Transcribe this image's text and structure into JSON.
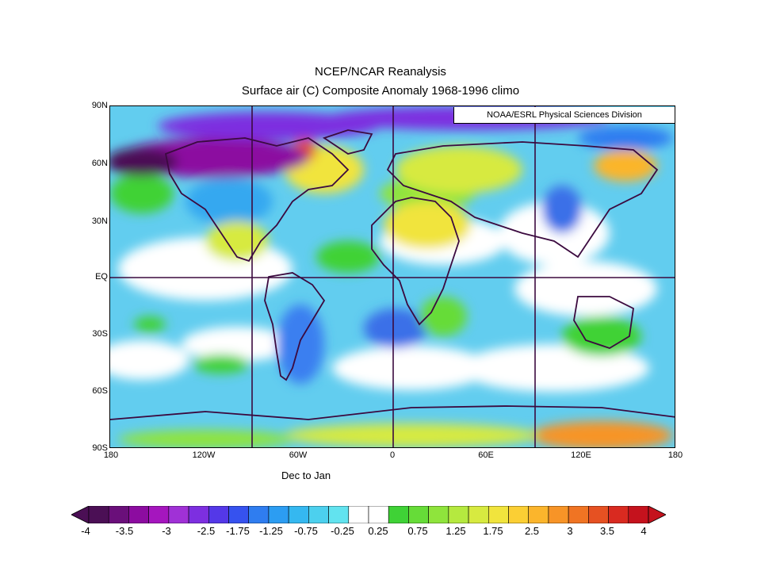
{
  "title": "NCEP/NCAR Reanalysis",
  "subtitle": "Surface air (C) Composite Anomaly 1968-1996 climo",
  "credit": "NOAA/ESRL Physical Sciences Division",
  "period": "Dec to Jan",
  "lat_labels": [
    "90N",
    "60N",
    "30N",
    "EQ",
    "30S",
    "60S",
    "90S"
  ],
  "lon_labels": [
    "180",
    "120W",
    "60W",
    "0",
    "60E",
    "120E",
    "180"
  ],
  "colorbar": {
    "labels": [
      "-4",
      "-3.5",
      "-3",
      "-2.5",
      "-1.75",
      "-1.25",
      "-0.75",
      "-0.25",
      "0.25",
      "0.75",
      "1.25",
      "1.75",
      "2.5",
      "3",
      "3.5",
      "4"
    ],
    "colors": [
      "#4b0f55",
      "#6a0f7a",
      "#8c0ca0",
      "#a516be",
      "#a031d6",
      "#7d2fe0",
      "#5438e8",
      "#3652ef",
      "#2f7df0",
      "#2c9df2",
      "#35b8f0",
      "#4cd0ee",
      "#62e3ef",
      "#ffffff",
      "#ffffff",
      "#3fd236",
      "#66dc38",
      "#8fe43c",
      "#b5e93f",
      "#d7ea40",
      "#f1e43d",
      "#fbcf34",
      "#fbb52c",
      "#f79427",
      "#f07423",
      "#e65122",
      "#d92a20",
      "#c5121d"
    ]
  }
}
